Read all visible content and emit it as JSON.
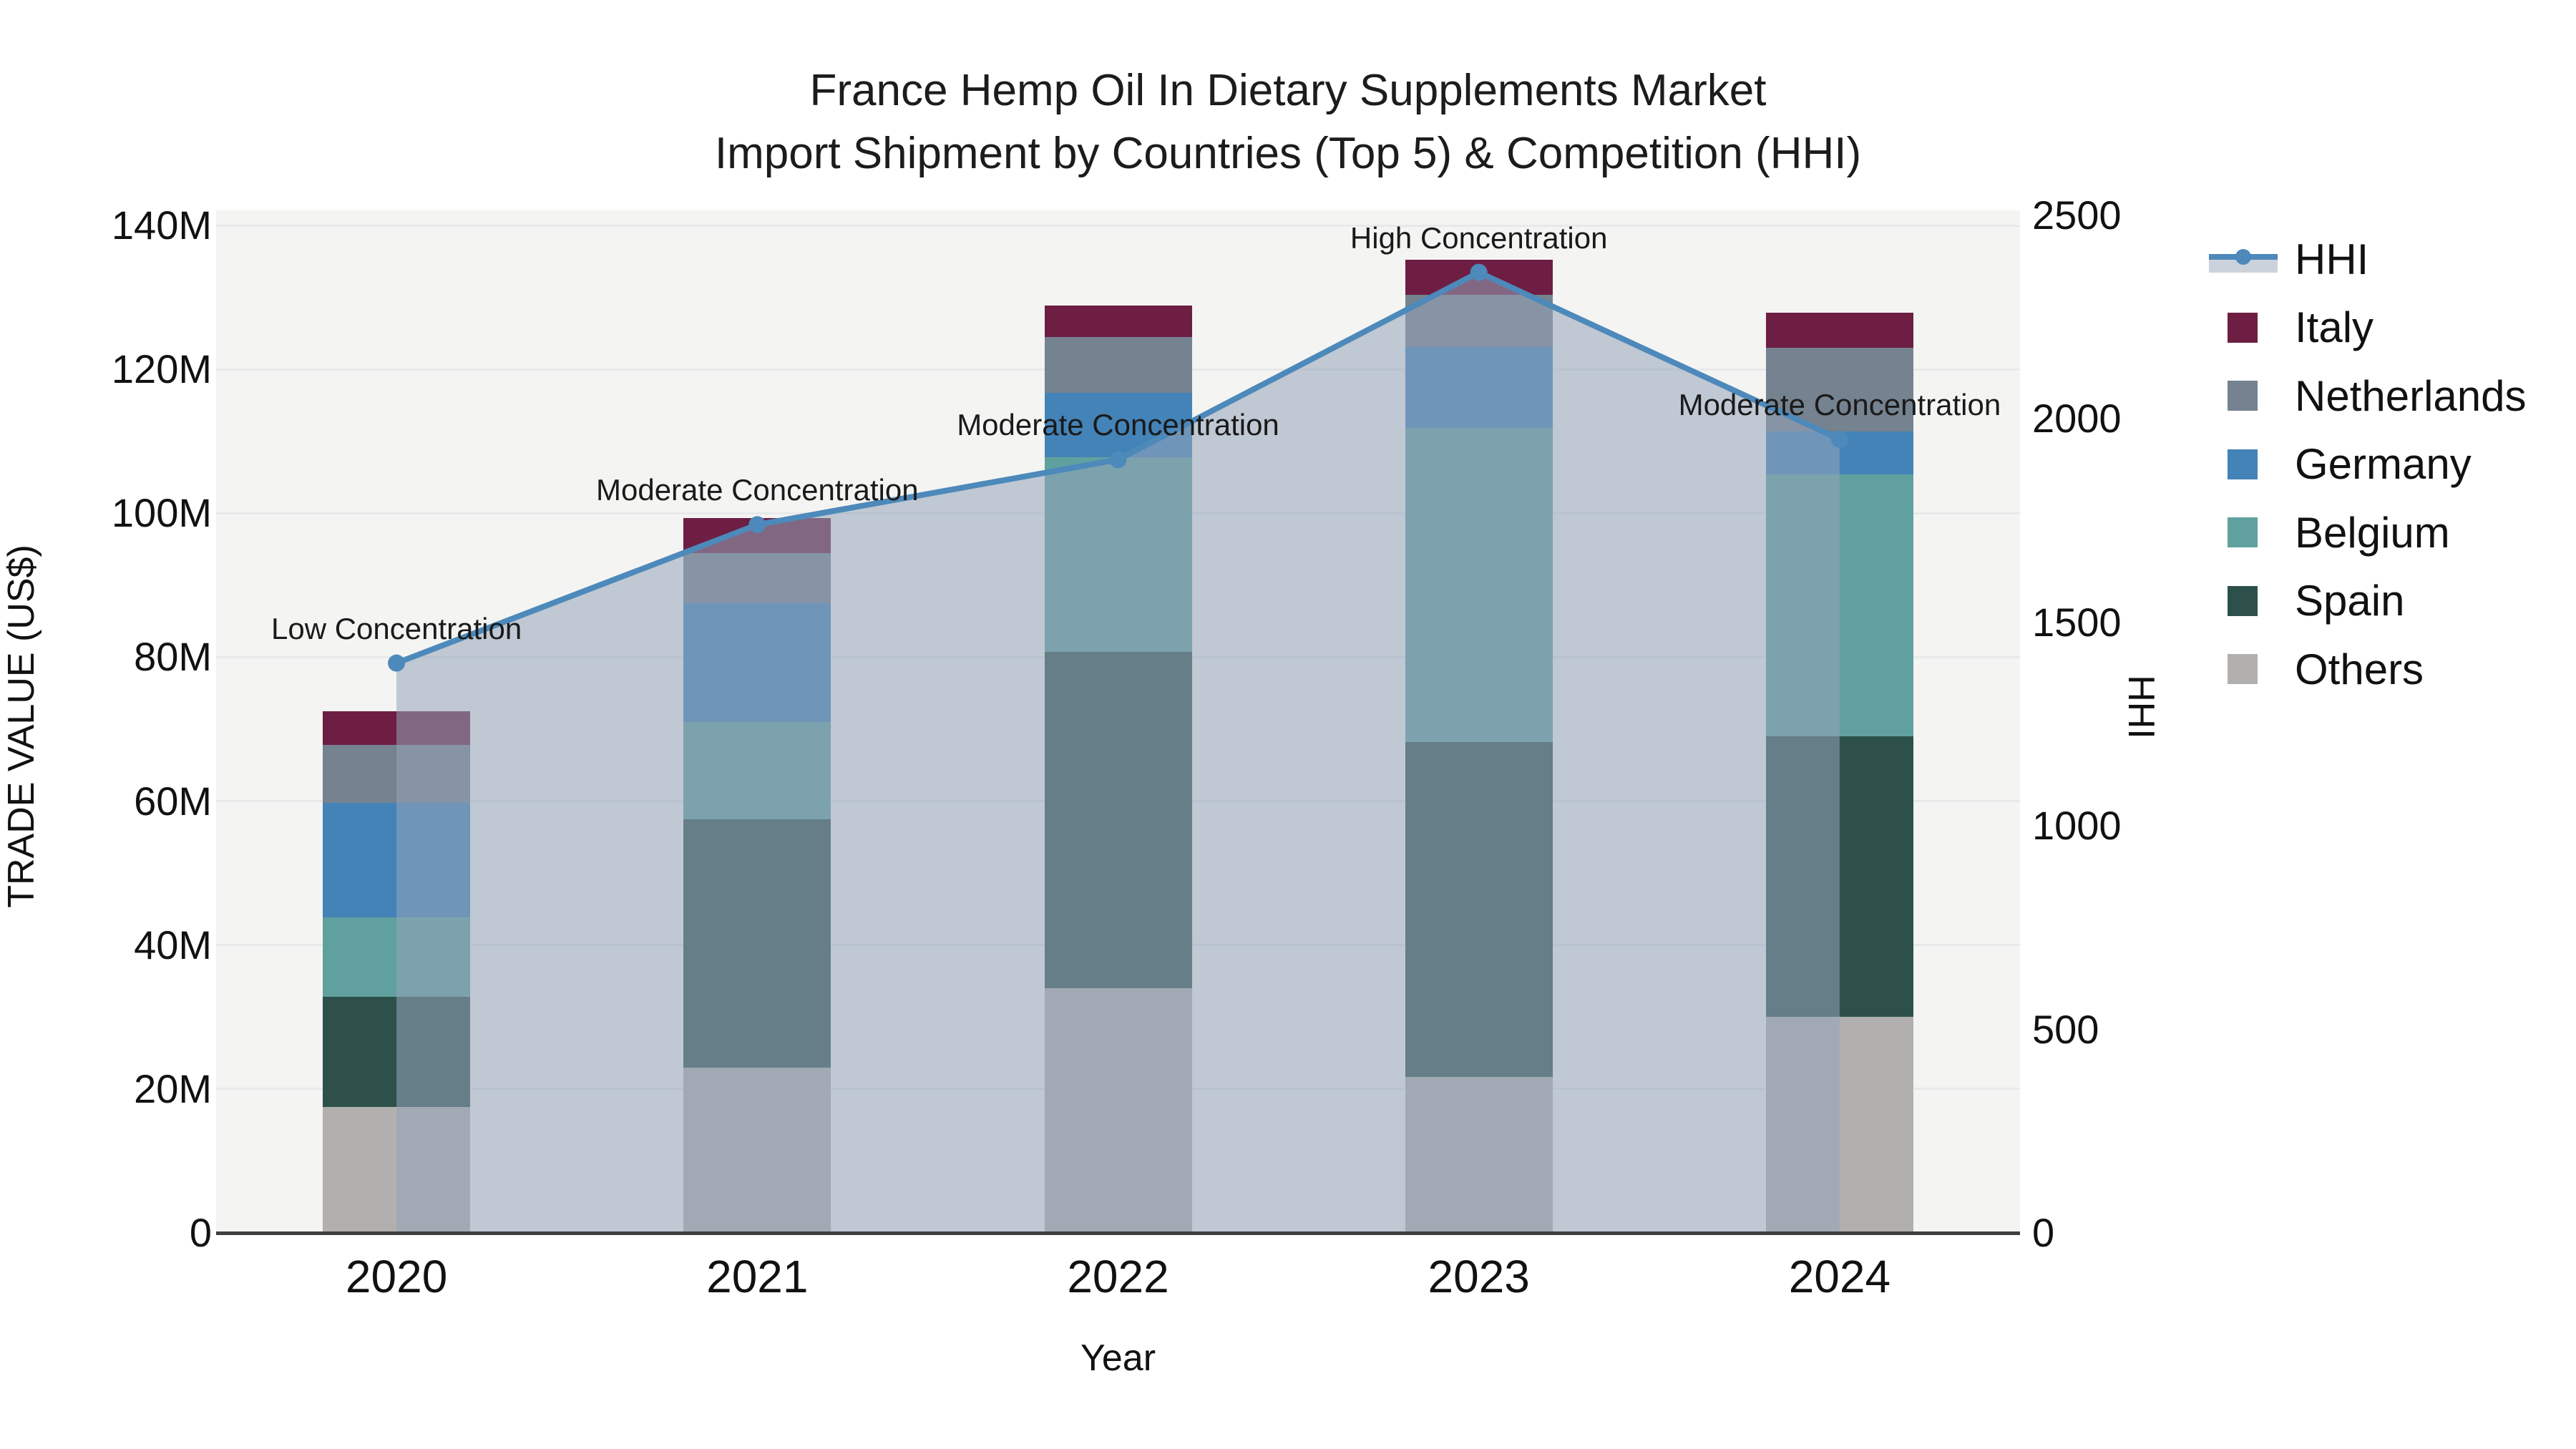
{
  "title": {
    "line1": "France Hemp Oil In Dietary Supplements Market",
    "line2": "Import Shipment by Countries (Top 5) & Competition (HHI)"
  },
  "axis_left": {
    "title": "TRADE VALUE (US$)",
    "tick_labels": [
      "0",
      "20M",
      "40M",
      "60M",
      "80M",
      "100M",
      "120M",
      "140M"
    ],
    "tick_values": [
      0,
      20,
      40,
      60,
      80,
      100,
      120,
      140
    ]
  },
  "axis_right": {
    "title": "HHI",
    "tick_labels": [
      "0",
      "500",
      "1000",
      "1500",
      "2000",
      "2500"
    ],
    "tick_values": [
      0,
      500,
      1000,
      1500,
      2000,
      2500
    ]
  },
  "axis_x": {
    "title": "Year",
    "categories": [
      "2020",
      "2021",
      "2022",
      "2023",
      "2024"
    ]
  },
  "legend": {
    "items": [
      {
        "label": "HHI",
        "type": "line",
        "color": "#4d89ba"
      },
      {
        "label": "Italy",
        "type": "swatch",
        "color": "#6e1e42"
      },
      {
        "label": "Netherlands",
        "type": "swatch",
        "color": "#75828f"
      },
      {
        "label": "Germany",
        "type": "swatch",
        "color": "#4383b8"
      },
      {
        "label": "Belgium",
        "type": "swatch",
        "color": "#60a19f"
      },
      {
        "label": "Spain",
        "type": "swatch",
        "color": "#2d504b"
      },
      {
        "label": "Others",
        "type": "swatch",
        "color": "#b1b0ae"
      }
    ]
  },
  "colors": {
    "hhi_line": "#4d89ba",
    "hhi_area": "rgba(148,164,185,0.55)",
    "legend_band": "#ccd2dc",
    "italy": "#6e1e42",
    "netherlands": "#75828f",
    "germany": "#4383b8",
    "belgium": "#60a19f",
    "spain": "#2d504b",
    "others": "#b1b0ae",
    "plot_bg": "#f4f4f2",
    "gridline": "#e7e9ea",
    "axis_line": "#3f3f3f"
  },
  "chart_data": {
    "type": "bar",
    "subtype": "stacked_bar_with_hhi_line",
    "title": "France Hemp Oil In Dietary Supplements Market — Import Shipment by Countries (Top 5) & Competition (HHI)",
    "xlabel": "Year",
    "ylabel_left": "TRADE VALUE (US$)",
    "ylabel_right": "HHI",
    "unit": "Million US$",
    "categories": [
      "2020",
      "2021",
      "2022",
      "2023",
      "2024"
    ],
    "series": [
      {
        "name": "Others",
        "values": [
          17.5,
          23.0,
          34.0,
          21.7,
          30.0
        ]
      },
      {
        "name": "Spain",
        "values": [
          15.3,
          34.5,
          46.7,
          46.5,
          39.0
        ]
      },
      {
        "name": "Belgium",
        "values": [
          11.0,
          13.5,
          27.1,
          43.7,
          36.4
        ]
      },
      {
        "name": "Germany",
        "values": [
          16.0,
          16.5,
          8.9,
          11.2,
          6.0
        ]
      },
      {
        "name": "Netherlands",
        "values": [
          8.0,
          7.0,
          7.8,
          7.3,
          11.6
        ]
      },
      {
        "name": "Italy",
        "values": [
          4.7,
          4.8,
          4.4,
          4.8,
          4.9
        ]
      }
    ],
    "totals": [
      72.5,
      99.3,
      128.9,
      135.2,
      127.9
    ],
    "line": {
      "name": "HHI",
      "axis": "right",
      "area_fill": true,
      "values": [
        1400,
        1740,
        1900,
        2360,
        1950
      ]
    },
    "annotations": [
      {
        "category": "2020",
        "text": "Low Concentration"
      },
      {
        "category": "2021",
        "text": "Moderate Concentration"
      },
      {
        "category": "2022",
        "text": "Moderate Concentration"
      },
      {
        "category": "2023",
        "text": "High Concentration"
      },
      {
        "category": "2024",
        "text": "Moderate Concentration"
      }
    ],
    "ylim_left": [
      0,
      140
    ],
    "ylim_right": [
      0,
      2500
    ],
    "grid": true,
    "legend_position": "right"
  }
}
